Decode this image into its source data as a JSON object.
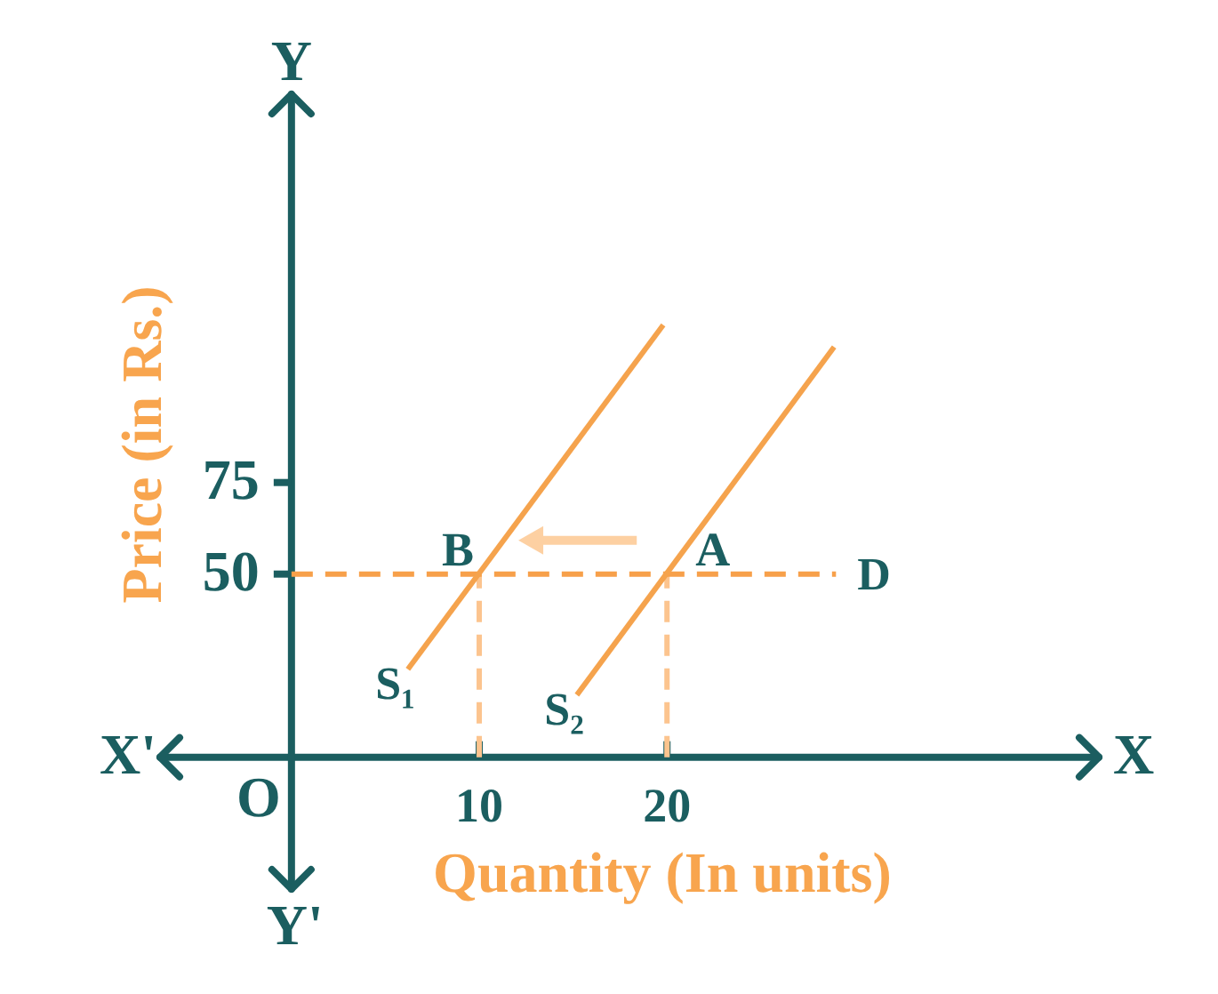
{
  "chart_data": {
    "type": "line",
    "xlabel": "Quantity (In units)",
    "ylabel": "Price (in Rs.)",
    "xlim": [
      -7,
      43
    ],
    "ylim": [
      -36,
      181
    ],
    "xticks": [
      10,
      20
    ],
    "yticks": [
      50,
      75
    ],
    "series": [
      {
        "name": "S₁",
        "color": "#f5a34d",
        "x": [
          6.2,
          19.8
        ],
        "values": [
          24,
          118
        ]
      },
      {
        "name": "S₂",
        "color": "#f5a34d",
        "x": [
          15.2,
          28.9
        ],
        "values": [
          17,
          112
        ]
      },
      {
        "name": "D",
        "color": "#f7a04a",
        "x": [
          0,
          29
        ],
        "values": [
          50,
          50
        ],
        "line_style": "dashed"
      },
      {
        "color": "#fcc48e",
        "x": [
          10,
          10
        ],
        "values": [
          0,
          50
        ],
        "line_style": "dashed"
      },
      {
        "color": "#fcc48e",
        "x": [
          20,
          20
        ],
        "values": [
          0,
          50
        ],
        "line_style": "dashed"
      }
    ],
    "annotations": [
      "X",
      "X'",
      "Y",
      "Y'",
      "O",
      {
        "text": "B",
        "x": 10,
        "y": 50
      },
      {
        "text": "A",
        "x": 20,
        "y": 50
      }
    ]
  }
}
